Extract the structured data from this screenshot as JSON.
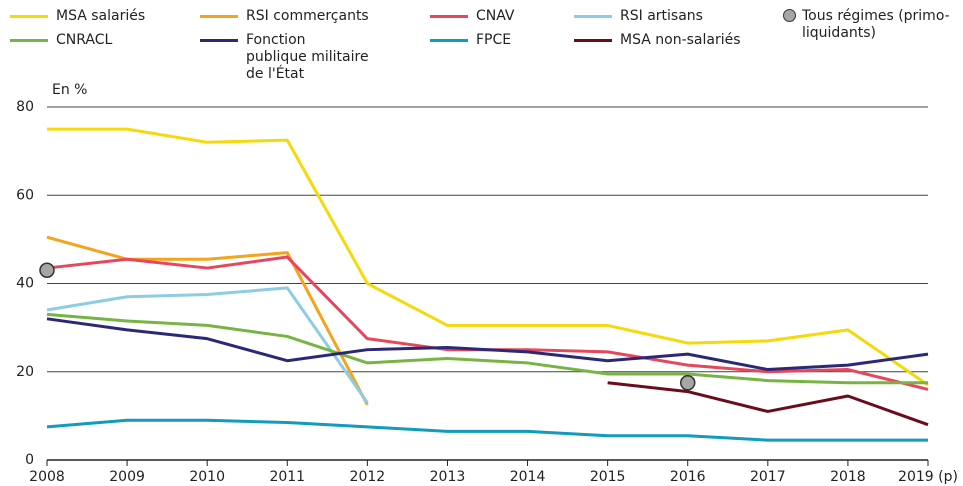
{
  "chart_data": {
    "type": "line",
    "y_label": "En %",
    "categories": [
      "2008",
      "2009",
      "2010",
      "2011",
      "2012",
      "2013",
      "2014",
      "2015",
      "2016",
      "2017",
      "2018",
      "2019 (p)"
    ],
    "ylim": [
      0,
      80
    ],
    "yticks": [
      0,
      20,
      40,
      60,
      80
    ],
    "grid": true,
    "series": [
      {
        "name": "MSA salariés",
        "color": "#f5d90a",
        "values": [
          75,
          75,
          72,
          72.5,
          40,
          30.5,
          30.5,
          30.5,
          26.5,
          27,
          29.5,
          17
        ]
      },
      {
        "name": "RSI commerçants",
        "color": "#f5a31a",
        "values": [
          50.5,
          45.5,
          45.5,
          47,
          12.5,
          null,
          null,
          null,
          null,
          null,
          null,
          null
        ]
      },
      {
        "name": "CNAV",
        "color": "#e5475d",
        "values": [
          43.5,
          45.5,
          43.5,
          46,
          27.5,
          25,
          25,
          24.5,
          21.5,
          20,
          20.5,
          16
        ]
      },
      {
        "name": "RSI artisans",
        "color": "#8ccde3",
        "values": [
          34,
          37,
          37.5,
          39,
          13,
          null,
          null,
          null,
          null,
          null,
          null,
          null
        ]
      },
      {
        "name": "Tous régimes (primo-liquidants)",
        "color": "#a6a6a6",
        "marker": "circle",
        "values": [
          43,
          null,
          null,
          null,
          null,
          null,
          null,
          null,
          17.5,
          null,
          null,
          null
        ]
      },
      {
        "name": "CNRACL",
        "color": "#78b443",
        "values": [
          33,
          31.5,
          30.5,
          28,
          22,
          23,
          22,
          19.5,
          19.5,
          18,
          17.5,
          17.5
        ]
      },
      {
        "name": "Fonction publique militaire de l'État",
        "color": "#2c2878",
        "values": [
          32,
          29.5,
          27.5,
          22.5,
          25,
          25.5,
          24.5,
          22.5,
          24,
          20.5,
          21.5,
          24
        ]
      },
      {
        "name": "FPCE",
        "color": "#119bbd",
        "values": [
          7.5,
          9,
          9,
          8.5,
          7.5,
          6.5,
          6.5,
          5.5,
          5.5,
          4.5,
          4.5,
          4.5
        ]
      },
      {
        "name": "MSA non-salariés",
        "color": "#6b0c1d",
        "values": [
          null,
          null,
          null,
          null,
          null,
          null,
          null,
          17.5,
          15.5,
          11,
          14.5,
          8
        ]
      }
    ]
  }
}
